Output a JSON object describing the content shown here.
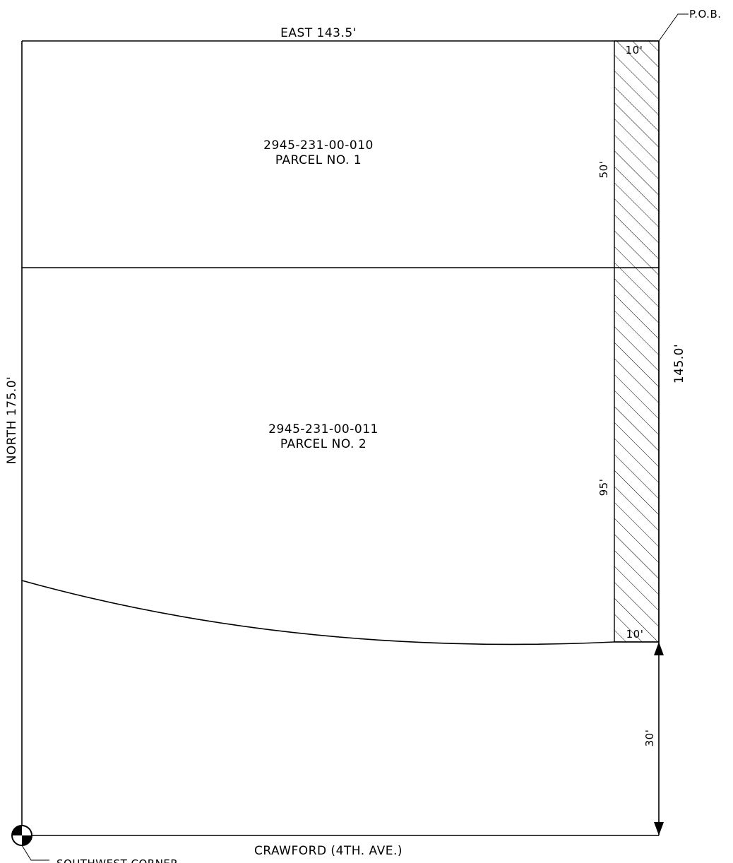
{
  "boundary": {
    "north_label": "EAST 143.5'",
    "west_label": "NORTH 175.0'",
    "east_label": "145.0'",
    "pob_label": "P.O.B."
  },
  "parcels": [
    {
      "id_label": "2945-231-00-010",
      "name_label": "PARCEL NO. 1",
      "strip_length_label": "50'"
    },
    {
      "id_label": "2945-231-00-011",
      "name_label": "PARCEL NO. 2",
      "strip_length_label": "95'"
    }
  ],
  "strip": {
    "top_width_label": "10'",
    "bottom_width_label": "10'"
  },
  "road": {
    "name_label": "CRAWFORD (4TH. AVE.)",
    "offset_label": "30'"
  },
  "corner": {
    "label": "SOUTHWEST CORNER"
  }
}
